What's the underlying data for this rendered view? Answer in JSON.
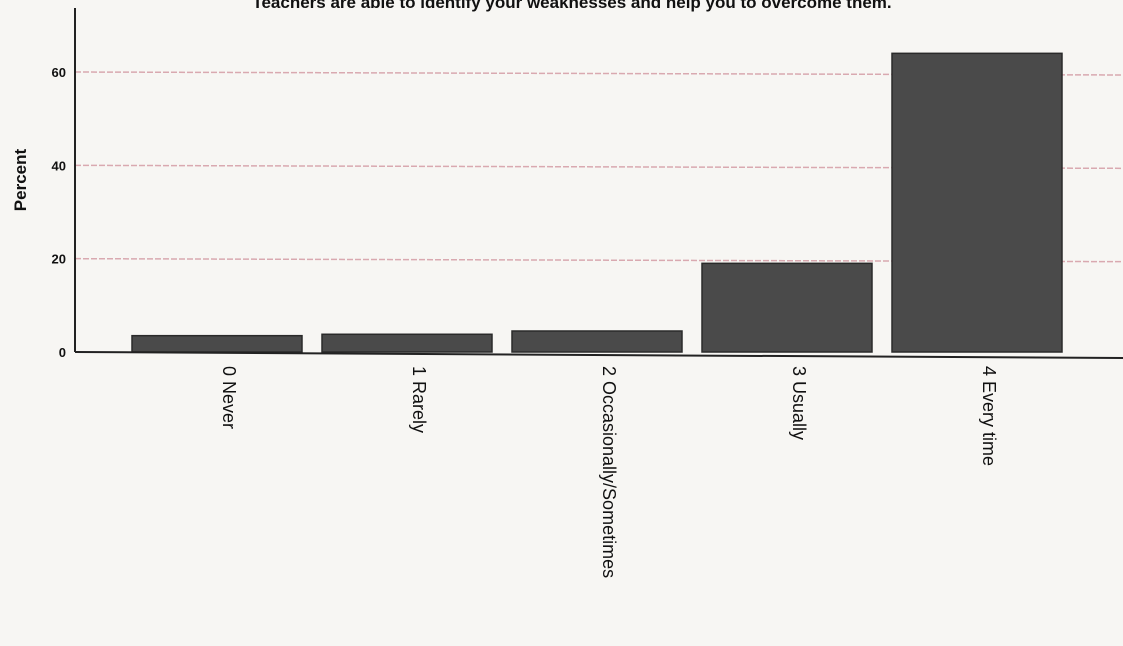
{
  "chart_data": {
    "type": "bar",
    "title": "Teachers are able to identify your weaknesses and help you to overcome them.",
    "ylabel": "Percent",
    "xlabel": "",
    "categories": [
      "0  Never",
      "1  Rarely",
      "2  Occasionally/Sometimes",
      "3  Usually",
      "4  Every time"
    ],
    "values": [
      3.5,
      3.8,
      4.5,
      19.0,
      64.0
    ],
    "ylim": [
      0,
      70
    ],
    "yticks": [
      "0",
      "20",
      "40",
      "60"
    ],
    "grid": true,
    "colors": {
      "bar": "#4a4a4a",
      "grid": "#d9a9b0",
      "axis": "#222222"
    }
  }
}
